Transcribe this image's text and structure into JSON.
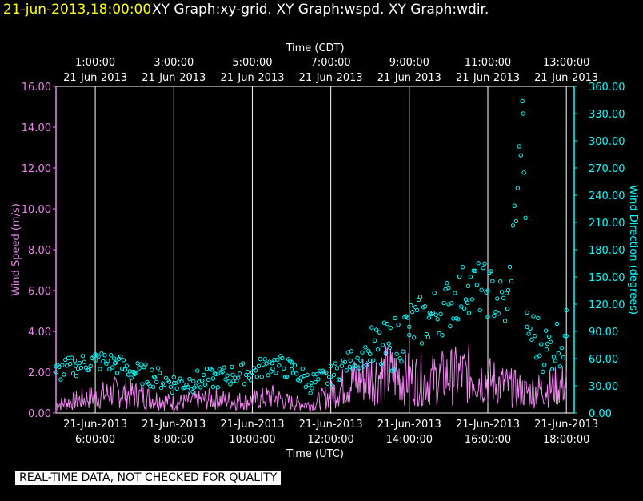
{
  "title": {
    "datetime": "21-jun-2013,18:00:00",
    "graphs": "XY Graph:xy-grid.  XY Graph:wspd.  XY Graph:wdir."
  },
  "top_axis": {
    "title": "Time (CDT)",
    "ticks": [
      {
        "time": "1:00:00",
        "date": "21-Jun-2013"
      },
      {
        "time": "3:00:00",
        "date": "21-Jun-2013"
      },
      {
        "time": "5:00:00",
        "date": "21-Jun-2013"
      },
      {
        "time": "7:00:00",
        "date": "21-Jun-2013"
      },
      {
        "time": "9:00:00",
        "date": "21-Jun-2013"
      },
      {
        "time": "11:00:00",
        "date": "21-Jun-2013"
      },
      {
        "time": "13:00:00",
        "date": "21-Jun-2013"
      }
    ]
  },
  "bottom_axis": {
    "title": "Time (UTC)",
    "ticks": [
      {
        "date": "21-Jun-2013",
        "time": "6:00:00"
      },
      {
        "date": "21-Jun-2013",
        "time": "8:00:00"
      },
      {
        "date": "21-Jun-2013",
        "time": "10:00:00"
      },
      {
        "date": "21-Jun-2013",
        "time": "12:00:00"
      },
      {
        "date": "21-Jun-2013",
        "time": "14:00:00"
      },
      {
        "date": "21-Jun-2013",
        "time": "16:00:00"
      },
      {
        "date": "21-Jun-2013",
        "time": "18:00:00"
      }
    ]
  },
  "left_axis": {
    "title": "Wind Speed (m/s)",
    "ticks": [
      "0.00",
      "2.00",
      "4.00",
      "6.00",
      "8.00",
      "10.00",
      "12.00",
      "14.00",
      "16.00"
    ]
  },
  "right_axis": {
    "title": "Wind Direction (degrees)",
    "ticks": [
      "0.00",
      "30.00",
      "60.00",
      "90.00",
      "120.00",
      "150.00",
      "180.00",
      "210.00",
      "240.00",
      "270.00",
      "300.00",
      "330.00",
      "360.00"
    ]
  },
  "footer": {
    "qc_note": "REAL-TIME DATA, NOT CHECKED FOR QUALITY"
  },
  "colors": {
    "background": "#000000",
    "title_date": "#ffff00",
    "wind_speed": "#ee82ee",
    "wind_direction": "#00ffff",
    "grid": "#ffffff",
    "text": "#ffffff"
  },
  "chart_data": {
    "type": "line",
    "title": "XY Graph:xy-grid.  XY Graph:wspd.  XY Graph:wdir.",
    "xlabel": "Time (UTC)",
    "xlabel_top": "Time (CDT)",
    "x_unit": "hours UTC, 21-Jun-2013",
    "xlim": [
      5.0,
      18.2
    ],
    "grid": true,
    "series": [
      {
        "name": "Wind Speed (m/s)",
        "axis": "left",
        "style": "line",
        "ylim": [
          0,
          16
        ],
        "x": [
          5.0,
          5.5,
          6.0,
          6.5,
          7.0,
          7.5,
          8.0,
          8.5,
          9.0,
          9.5,
          10.0,
          10.5,
          11.0,
          11.5,
          12.0,
          12.5,
          13.0,
          13.5,
          14.0,
          14.5,
          15.0,
          15.5,
          16.0,
          16.5,
          17.0,
          17.5,
          18.0
        ],
        "y": [
          0.4,
          0.6,
          0.8,
          1.0,
          0.9,
          0.7,
          0.5,
          0.6,
          0.7,
          0.6,
          0.6,
          0.8,
          0.5,
          0.4,
          0.9,
          1.5,
          1.8,
          1.9,
          1.7,
          1.6,
          1.8,
          1.9,
          1.6,
          1.3,
          1.0,
          1.2,
          1.4
        ]
      },
      {
        "name": "Wind Direction (degrees)",
        "axis": "right",
        "style": "scatter",
        "ylim": [
          0,
          360
        ],
        "x": [
          5.0,
          5.5,
          6.0,
          6.5,
          7.0,
          7.5,
          8.0,
          8.5,
          9.0,
          9.5,
          10.0,
          10.5,
          11.0,
          11.5,
          12.0,
          12.5,
          13.0,
          13.5,
          14.0,
          14.5,
          15.0,
          15.5,
          16.0,
          16.5,
          16.9,
          17.0,
          17.5,
          18.0
        ],
        "y": [
          45,
          52,
          58,
          55,
          45,
          40,
          33,
          35,
          38,
          42,
          45,
          55,
          48,
          33,
          40,
          58,
          65,
          72,
          95,
          105,
          120,
          140,
          135,
          115,
          330,
          95,
          70,
          85
        ]
      }
    ]
  }
}
